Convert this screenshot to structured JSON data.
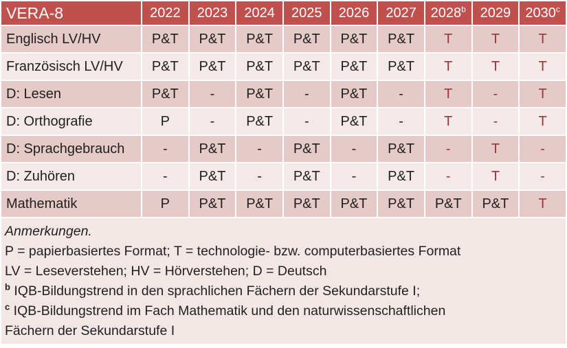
{
  "colors": {
    "header_bg": "#C0504D",
    "header_text": "#FFFFFF",
    "band_dark": "#E6CAC8",
    "band_light": "#F4E9E8",
    "notes_bg": "#F2E7E5",
    "red_text": "#963634",
    "body_text": "#1F1F1F"
  },
  "table": {
    "title": "VERA-8",
    "columns": [
      {
        "label": "2022",
        "sup": ""
      },
      {
        "label": "2023",
        "sup": ""
      },
      {
        "label": "2024",
        "sup": ""
      },
      {
        "label": "2025",
        "sup": ""
      },
      {
        "label": "2026",
        "sup": ""
      },
      {
        "label": "2027",
        "sup": ""
      },
      {
        "label": "2028",
        "sup": "b"
      },
      {
        "label": "2029",
        "sup": ""
      },
      {
        "label": "2030",
        "sup": "c"
      }
    ],
    "rows": [
      {
        "label": "Englisch LV/HV",
        "band": "dark",
        "cells": [
          {
            "t": "P&T",
            "red": false
          },
          {
            "t": "P&T",
            "red": false
          },
          {
            "t": "P&T",
            "red": false
          },
          {
            "t": "P&T",
            "red": false
          },
          {
            "t": "P&T",
            "red": false
          },
          {
            "t": "P&T",
            "red": false
          },
          {
            "t": "T",
            "red": true
          },
          {
            "t": "T",
            "red": true
          },
          {
            "t": "T",
            "red": true
          }
        ]
      },
      {
        "label": "Französisch LV/HV",
        "band": "light",
        "cells": [
          {
            "t": "P&T",
            "red": false
          },
          {
            "t": "P&T",
            "red": false
          },
          {
            "t": "P&T",
            "red": false
          },
          {
            "t": "P&T",
            "red": false
          },
          {
            "t": "P&T",
            "red": false
          },
          {
            "t": "P&T",
            "red": false
          },
          {
            "t": "T",
            "red": true
          },
          {
            "t": "T",
            "red": true
          },
          {
            "t": "T",
            "red": true
          }
        ]
      },
      {
        "label": "D: Lesen",
        "band": "dark",
        "cells": [
          {
            "t": "P&T",
            "red": false
          },
          {
            "t": "-",
            "red": false
          },
          {
            "t": "P&T",
            "red": false
          },
          {
            "t": "-",
            "red": false
          },
          {
            "t": "P&T",
            "red": false
          },
          {
            "t": "-",
            "red": false
          },
          {
            "t": "T",
            "red": true
          },
          {
            "t": "-",
            "red": true
          },
          {
            "t": "T",
            "red": true
          }
        ]
      },
      {
        "label": "D: Orthografie",
        "band": "light",
        "cells": [
          {
            "t": "P",
            "red": false
          },
          {
            "t": "-",
            "red": false
          },
          {
            "t": "P&T",
            "red": false
          },
          {
            "t": "-",
            "red": false
          },
          {
            "t": "P&T",
            "red": false
          },
          {
            "t": "-",
            "red": false
          },
          {
            "t": "T",
            "red": true
          },
          {
            "t": "-",
            "red": true
          },
          {
            "t": "T",
            "red": true
          }
        ]
      },
      {
        "label": "D: Sprachgebrauch",
        "band": "dark",
        "cells": [
          {
            "t": "-",
            "red": false
          },
          {
            "t": "P&T",
            "red": false
          },
          {
            "t": "-",
            "red": false
          },
          {
            "t": "P&T",
            "red": false
          },
          {
            "t": "-",
            "red": false
          },
          {
            "t": "P&T",
            "red": false
          },
          {
            "t": "-",
            "red": true
          },
          {
            "t": "T",
            "red": true
          },
          {
            "t": "-",
            "red": true
          }
        ]
      },
      {
        "label": "D: Zuhören",
        "band": "light",
        "cells": [
          {
            "t": "-",
            "red": false
          },
          {
            "t": "P&T",
            "red": false
          },
          {
            "t": "-",
            "red": false
          },
          {
            "t": "P&T",
            "red": false
          },
          {
            "t": "-",
            "red": false
          },
          {
            "t": "P&T",
            "red": false
          },
          {
            "t": "-",
            "red": true
          },
          {
            "t": "T",
            "red": true
          },
          {
            "t": "-",
            "red": true
          }
        ]
      },
      {
        "label": "Mathematik",
        "band": "dark",
        "cells": [
          {
            "t": "P",
            "red": false
          },
          {
            "t": "P&T",
            "red": false
          },
          {
            "t": "P&T",
            "red": false
          },
          {
            "t": "P&T",
            "red": false
          },
          {
            "t": "P&T",
            "red": false
          },
          {
            "t": "P&T",
            "red": false
          },
          {
            "t": "P&T",
            "red": false
          },
          {
            "t": "P&T",
            "red": false
          },
          {
            "t": "T",
            "red": true
          }
        ]
      }
    ]
  },
  "notes": {
    "lines": [
      {
        "sup": "",
        "italic": true,
        "text": "Anmerkungen."
      },
      {
        "sup": "",
        "italic": false,
        "text": "P = papierbasiertes Format; T = technologie- bzw. computerbasiertes Format"
      },
      {
        "sup": "",
        "italic": false,
        "text": "LV = Leseverstehen; HV = Hörverstehen; D = Deutsch"
      },
      {
        "sup": "b",
        "italic": false,
        "text": "IQB-Bildungstrend in den sprachlichen Fächern der Sekundarstufe I;"
      },
      {
        "sup": "c",
        "italic": false,
        "text": "IQB-Bildungstrend im Fach Mathematik und den naturwissenschaftlichen"
      },
      {
        "sup": "",
        "italic": false,
        "text": "Fächern der Sekundarstufe I"
      }
    ]
  }
}
